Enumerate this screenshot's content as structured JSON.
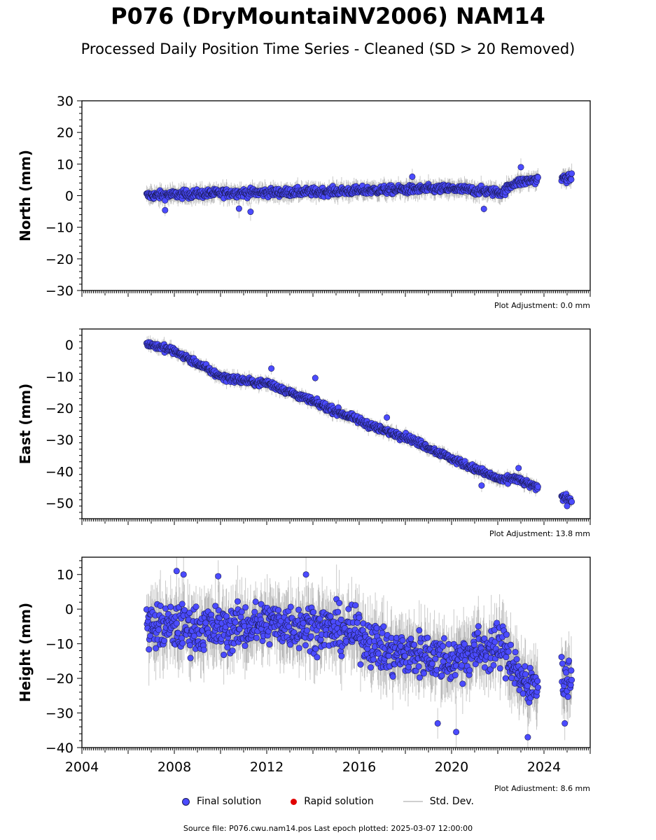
{
  "title": "P076 (DryMountaiNV2006) NAM14",
  "subtitle": "Processed Daily Position Time Series - Cleaned (SD > 20 Removed)",
  "legend": {
    "final": "Final solution",
    "rapid": "Rapid solution",
    "stddev": "Std. Dev."
  },
  "footer": "Source file: P076.cwu.nam14.pos  Last epoch plotted: 2025-03-07 12:00:00",
  "colors": {
    "final": "#4b4bff",
    "rapid": "#e00000",
    "stddev": "#cfcfcf",
    "edge": "#1a1a55"
  },
  "chart_data": [
    {
      "type": "scatter",
      "ylabel": "North (mm)",
      "adjustment": "Plot Adjustment: 0.0 mm",
      "xlim": [
        2004,
        2026
      ],
      "ylim": [
        -30,
        30
      ],
      "yticks": [
        -30,
        -20,
        -10,
        0,
        10,
        20,
        30
      ],
      "trend": [
        [
          2006.8,
          0
        ],
        [
          2010,
          0.8
        ],
        [
          2014,
          1.2
        ],
        [
          2017,
          1.8
        ],
        [
          2020,
          2.2
        ],
        [
          2022.2,
          1.0
        ],
        [
          2022.7,
          4.0
        ],
        [
          2023.6,
          5.0
        ],
        [
          2024.8,
          5.5
        ],
        [
          2025.2,
          5.5
        ]
      ],
      "noise": 1.1,
      "err": 2.2,
      "outliers": [
        [
          2007.6,
          -4.6
        ],
        [
          2010.8,
          -4.1
        ],
        [
          2011.3,
          -5.1
        ],
        [
          2018.3,
          6.0
        ],
        [
          2021.4,
          -4.2
        ],
        [
          2023.0,
          9.0
        ]
      ]
    },
    {
      "type": "scatter",
      "ylabel": "East (mm)",
      "adjustment": "Plot Adjustment: 13.8 mm",
      "xlim": [
        2004,
        2026
      ],
      "ylim": [
        -55,
        5
      ],
      "yticks": [
        -50,
        -40,
        -30,
        -20,
        -10,
        0
      ],
      "trend": [
        [
          2006.8,
          0.5
        ],
        [
          2008,
          -2
        ],
        [
          2010,
          -10
        ],
        [
          2011.5,
          -12
        ],
        [
          2012,
          -12
        ],
        [
          2014,
          -18
        ],
        [
          2016,
          -24
        ],
        [
          2017,
          -27
        ],
        [
          2018,
          -29
        ],
        [
          2020,
          -36
        ],
        [
          2022.2,
          -43
        ],
        [
          2022.7,
          -42
        ],
        [
          2023.6,
          -45
        ],
        [
          2024.8,
          -48
        ],
        [
          2025.2,
          -49
        ]
      ],
      "noise": 0.9,
      "err": 1.6,
      "outliers": [
        [
          2012.2,
          -7.5
        ],
        [
          2014.1,
          -10.5
        ],
        [
          2017.2,
          -23.0
        ],
        [
          2021.3,
          -44.5
        ],
        [
          2022.9,
          -39.0
        ],
        [
          2025.0,
          -51.0
        ]
      ]
    },
    {
      "type": "scatter",
      "ylabel": "Height (mm)",
      "adjustment": "Plot Adjustment: 8.6 mm",
      "xlim": [
        2004,
        2026
      ],
      "ylim": [
        -40,
        15
      ],
      "yticks": [
        -40,
        -30,
        -20,
        -10,
        0,
        10
      ],
      "xticks": [
        2004,
        2008,
        2012,
        2016,
        2020,
        2024
      ],
      "trend": [
        [
          2006.8,
          -5
        ],
        [
          2010,
          -6
        ],
        [
          2012,
          -4
        ],
        [
          2014,
          -5
        ],
        [
          2016,
          -7
        ],
        [
          2017.3,
          -13
        ],
        [
          2019,
          -13
        ],
        [
          2020,
          -15
        ],
        [
          2021,
          -12
        ],
        [
          2022.2,
          -11
        ],
        [
          2022.7,
          -16
        ],
        [
          2023.3,
          -24
        ],
        [
          2023.6,
          -20
        ],
        [
          2024.8,
          -20
        ],
        [
          2025.2,
          -20
        ]
      ],
      "noise": 5.5,
      "err": 7,
      "outliers": [
        [
          2008.1,
          11
        ],
        [
          2008.4,
          10
        ],
        [
          2009.9,
          9.5
        ],
        [
          2013.7,
          10
        ],
        [
          2019.4,
          -33
        ],
        [
          2020.2,
          -35.5
        ],
        [
          2023.3,
          -37
        ],
        [
          2024.9,
          -33
        ]
      ]
    }
  ]
}
